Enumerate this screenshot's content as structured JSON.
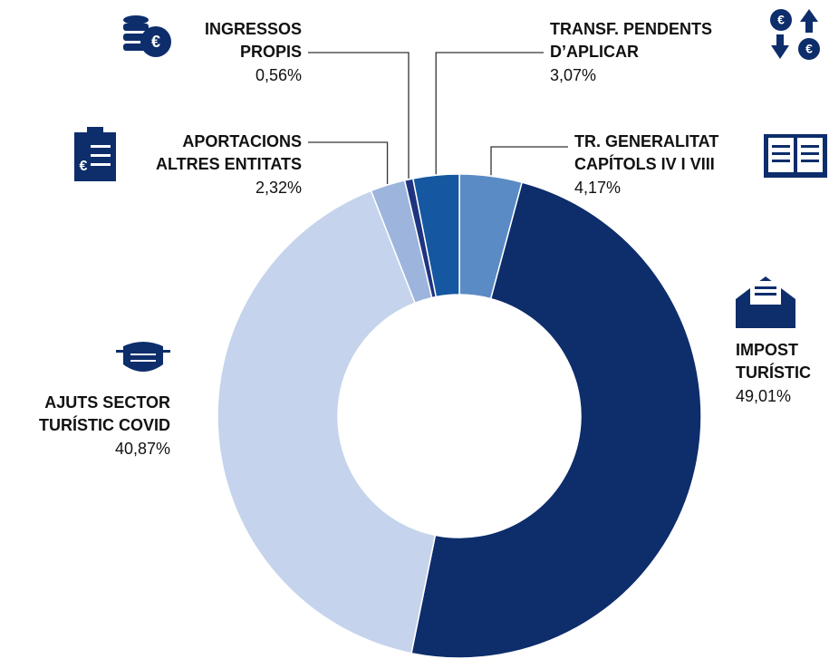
{
  "chart_data": {
    "type": "donut",
    "categories": [
      [
        "TR. GENERALITAT",
        "CAPÍTOLS IV I VIII"
      ],
      [
        "IMPOST",
        "TURÍSTIC"
      ],
      [
        "AJUTS SECTOR",
        "TURÍSTIC COVID"
      ],
      [
        "APORTACIONS",
        "ALTRES ENTITATS"
      ],
      [
        "INGRESSOS",
        "PROPIS"
      ],
      [
        "TRANSF. PENDENTS",
        "D’APLICAR"
      ]
    ],
    "values": [
      4.17,
      49.01,
      40.87,
      2.32,
      0.56,
      3.07
    ],
    "value_labels": [
      "4,17%",
      "49,01%",
      "40,87%",
      "2,32%",
      "0,56%",
      "3,07%"
    ],
    "colors": [
      "#5b8bc5",
      "#0d2d6b",
      "#c5d3ec",
      "#9db5dd",
      "#1f3480",
      "#1557a0"
    ]
  }
}
